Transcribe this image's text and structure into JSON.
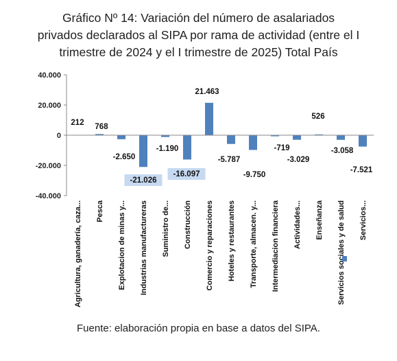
{
  "title_lines": [
    "Gráfico Nº 14: Variación del número de asalariados",
    "privados declarados al SIPA por rama de actividad (entre el I",
    "trimestre de 2024 y el I trimestre de 2025) Total País"
  ],
  "source": "Fuente: elaboración propia en base a datos del SIPA.",
  "colors": {
    "bar": "#4f81bd",
    "label_highlight": "#c6d9f1",
    "axis": "#888888"
  },
  "chart_data": {
    "type": "bar",
    "categories": [
      "Agricultura, ganadería, caza...",
      "Pesca",
      "Explotacion de minas y...",
      "Industrias manufactureras",
      "Suministro de...",
      "Construcción",
      "Comercio y reparaciones",
      "Hoteles y restaurantes",
      "Transporte, almacen. y...",
      "Intermediacion financiera",
      "Actividades...",
      "Enseñanza",
      "Servicios sociales y de salud",
      "Servicios..."
    ],
    "values": [
      212,
      768,
      -2650,
      -21026,
      -1190,
      -16097,
      21463,
      -5787,
      -9750,
      -719,
      -3029,
      526,
      -3058,
      -7521
    ],
    "data_labels": [
      "212",
      "768",
      "-2.650",
      "-21.026",
      "-1.190",
      "-16.097",
      "21.463",
      "-5.787",
      "-9.750",
      "-719",
      "-3.029",
      "526",
      "-3.058",
      "-7.521"
    ],
    "highlighted_labels": [
      3,
      5
    ],
    "ylim": [
      -40000,
      40000
    ],
    "yticks": [
      -40000,
      -20000,
      0,
      20000,
      40000
    ],
    "ytick_labels": [
      "-40.000",
      "-20.000",
      "0",
      "20.000",
      "40.000"
    ],
    "grid": false,
    "legend": "none"
  }
}
